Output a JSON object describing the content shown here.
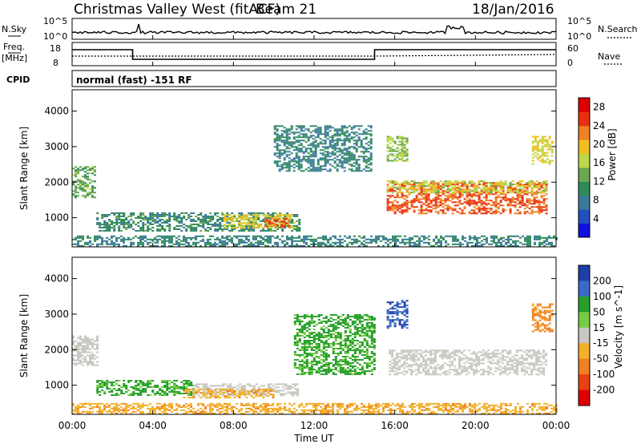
{
  "header": {
    "title": "Christmas Valley West (fitACF)",
    "beam": "Beam 21",
    "date": "18/Jan/2016"
  },
  "noise_panel": {
    "left_label": "N.Sky",
    "right_label": "N.Search",
    "tick_top": "10^5",
    "tick_bottom": "10^0"
  },
  "freq_panel": {
    "left_label_1": "Freq.",
    "left_label_2": "[MHz]",
    "left_tick_top": "18",
    "left_tick_bottom": "8",
    "right_label": "Nave",
    "right_tick_top": "60",
    "right_tick_bottom": "0"
  },
  "cpid_panel": {
    "label": "CPID",
    "mode": "normal (fast) -151 RF"
  },
  "chart_data": [
    {
      "type": "heatmap",
      "title": "",
      "xlabel": "Time UT",
      "ylabel": "Slant Range [km]",
      "x_ticks": [
        "00:00",
        "04:00",
        "08:00",
        "12:00",
        "16:00",
        "20:00",
        "00:00"
      ],
      "x_range_hours": [
        0,
        24
      ],
      "y_ticks": [
        1000,
        2000,
        3000,
        4000
      ],
      "y_range": [
        180,
        4600
      ],
      "colorbar": {
        "label": "Power [dB]",
        "ticks": [
          4,
          8,
          12,
          16,
          20,
          24,
          28
        ],
        "range": [
          0,
          30
        ]
      },
      "features": [
        {
          "t": [
            0.0,
            1.1
          ],
          "r": [
            1550,
            2450
          ],
          "level": 13
        },
        {
          "t": [
            1.2,
            11.3
          ],
          "r": [
            650,
            1150
          ],
          "level": 10
        },
        {
          "t": [
            7.5,
            11.0
          ],
          "r": [
            700,
            1100
          ],
          "level": 18
        },
        {
          "t": [
            9.5,
            10.7
          ],
          "r": [
            750,
            1000
          ],
          "level": 24
        },
        {
          "t": [
            15.6,
            23.5
          ],
          "r": [
            1100,
            2000
          ],
          "level": 24
        },
        {
          "t": [
            15.6,
            23.5
          ],
          "r": [
            1700,
            2050
          ],
          "level": 17
        },
        {
          "t": [
            15.6,
            16.6
          ],
          "r": [
            2600,
            3300
          ],
          "level": 15
        },
        {
          "t": [
            22.8,
            23.8
          ],
          "r": [
            2500,
            3300
          ],
          "level": 18
        },
        {
          "t": [
            10.0,
            14.8
          ],
          "r": [
            2300,
            3600
          ],
          "level": 9
        },
        {
          "t": [
            0.0,
            24.0
          ],
          "r": [
            200,
            500
          ],
          "level": 9
        }
      ]
    },
    {
      "type": "heatmap",
      "title": "",
      "xlabel": "Time UT",
      "ylabel": "Slant Range [km]",
      "x_ticks": [
        "00:00",
        "04:00",
        "08:00",
        "12:00",
        "16:00",
        "20:00",
        "00:00"
      ],
      "x_range_hours": [
        0,
        24
      ],
      "y_ticks": [
        1000,
        2000,
        3000,
        4000
      ],
      "y_range": [
        180,
        4600
      ],
      "colorbar": {
        "label": "Velocity [m s^-1]",
        "ticks": [
          200,
          100,
          50,
          15,
          -15,
          -50,
          -100,
          -200
        ],
        "range": [
          -250,
          250
        ]
      },
      "features": [
        {
          "t": [
            0.0,
            1.3
          ],
          "r": [
            1550,
            2400
          ],
          "level": 0
        },
        {
          "t": [
            1.2,
            6.0
          ],
          "r": [
            700,
            1150
          ],
          "level": 40
        },
        {
          "t": [
            6.0,
            11.2
          ],
          "r": [
            700,
            1050
          ],
          "level": 0
        },
        {
          "t": [
            5.5,
            10.0
          ],
          "r": [
            650,
            900
          ],
          "level": -40
        },
        {
          "t": [
            15.7,
            23.5
          ],
          "r": [
            1300,
            2000
          ],
          "level": 0
        },
        {
          "t": [
            15.6,
            16.6
          ],
          "r": [
            2600,
            3400
          ],
          "level": 150
        },
        {
          "t": [
            22.8,
            23.8
          ],
          "r": [
            2500,
            3300
          ],
          "level": -60
        },
        {
          "t": [
            11.0,
            15.0
          ],
          "r": [
            1300,
            3000
          ],
          "level": 40
        },
        {
          "t": [
            0.0,
            24.0
          ],
          "r": [
            200,
            500
          ],
          "level": -40
        }
      ]
    }
  ]
}
